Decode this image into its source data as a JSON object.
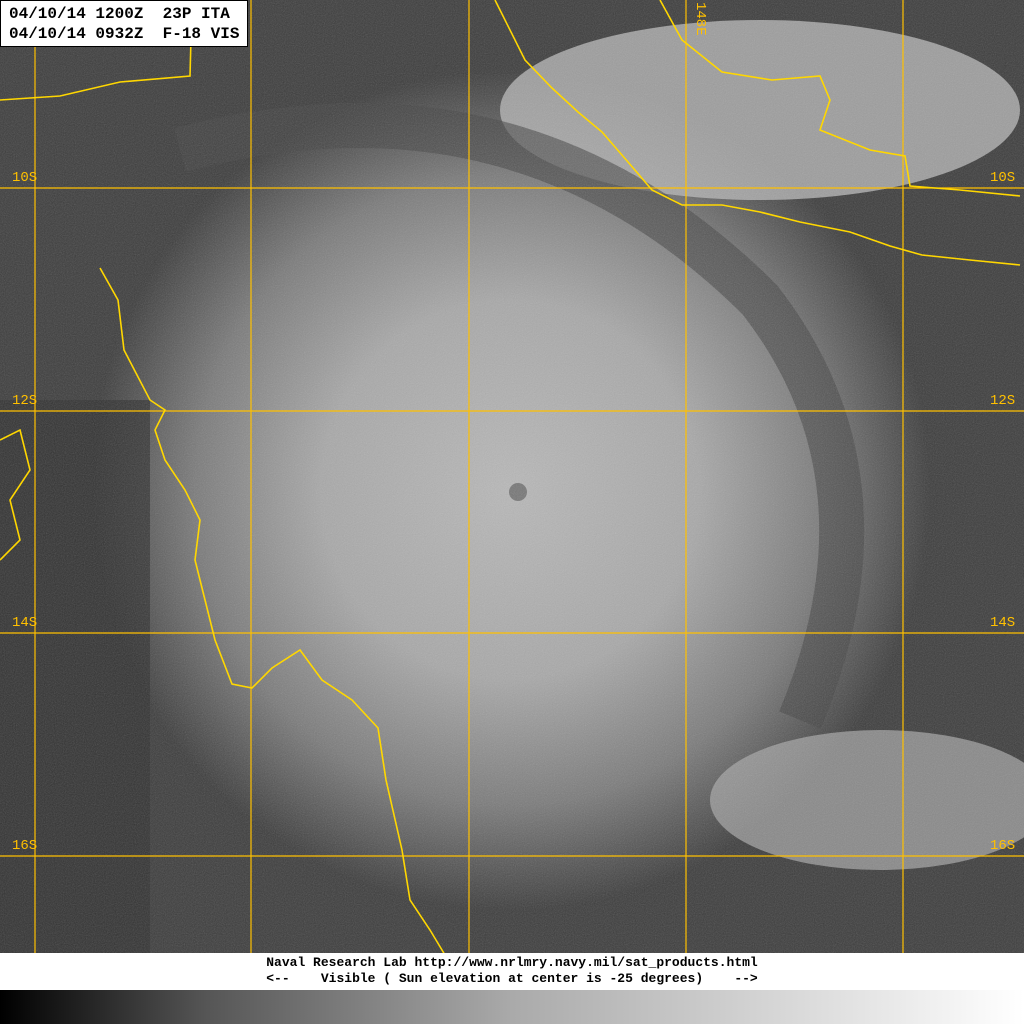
{
  "header": {
    "line1": "04/10/14 1200Z  23P ITA",
    "line2": "04/10/14 0932Z  F-18 VIS"
  },
  "grid": {
    "latitude_labels": [
      "10S",
      "12S",
      "14S",
      "16S"
    ],
    "longitude_labels": [
      "148E"
    ],
    "color": "#ffc000"
  },
  "coastline_color": "#ffd700",
  "footer": {
    "line1": "Naval Research Lab http://www.nrlmry.navy.mil/sat_products.html",
    "line2": "<--    Visible ( Sun elevation at center is -25 degrees)    -->"
  },
  "scale_bar": {
    "from": "#000000",
    "to": "#ffffff"
  }
}
